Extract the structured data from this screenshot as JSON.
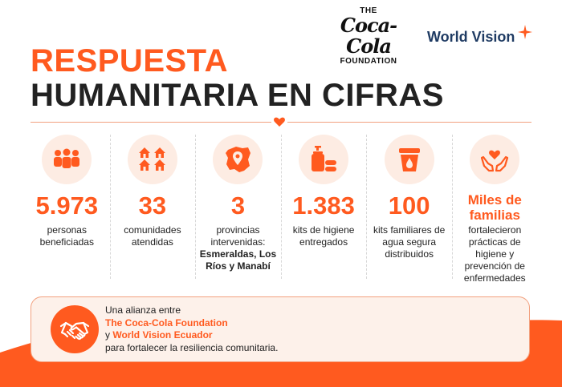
{
  "logos": {
    "coca_cola": {
      "the": "THE",
      "script": "Coca-Cola",
      "foundation": "FOUNDATION"
    },
    "world_vision": "World Vision"
  },
  "title": {
    "line1": "RESPUESTA",
    "line2": "HUMANITARIA EN CIFRAS"
  },
  "colors": {
    "accent": "#ff5a1f",
    "dark": "#222222",
    "light_fill": "#fdece3",
    "brand_blue": "#1f3b63"
  },
  "stats": [
    {
      "icon": "people-icon",
      "number": "5.973",
      "label": "personas beneficiadas"
    },
    {
      "icon": "houses-icon",
      "number": "33",
      "label": "comunidades atendidas"
    },
    {
      "icon": "map-pin-icon",
      "number": "3",
      "label": "provincias intervenidas:",
      "detail": "Esmeraldas, Los Ríos y Manabí"
    },
    {
      "icon": "hygiene-kit-icon",
      "number": "1.383",
      "label": "kits de higiene entregados"
    },
    {
      "icon": "water-bucket-icon",
      "number": "100",
      "label": "kits familiares de agua segura distribuidos"
    },
    {
      "icon": "heart-hands-icon",
      "number": "Miles de familias",
      "label": "fortalecieron prácticas de higiene y prevención de enfermedades"
    }
  ],
  "alliance": {
    "line1": "Una alianza entre",
    "line2": "The Coca-Cola Foundation",
    "line3_prefix": "y",
    "line3_org": "World Vision Ecuador",
    "line4": "para fortalecer la resiliencia comunitaria."
  }
}
